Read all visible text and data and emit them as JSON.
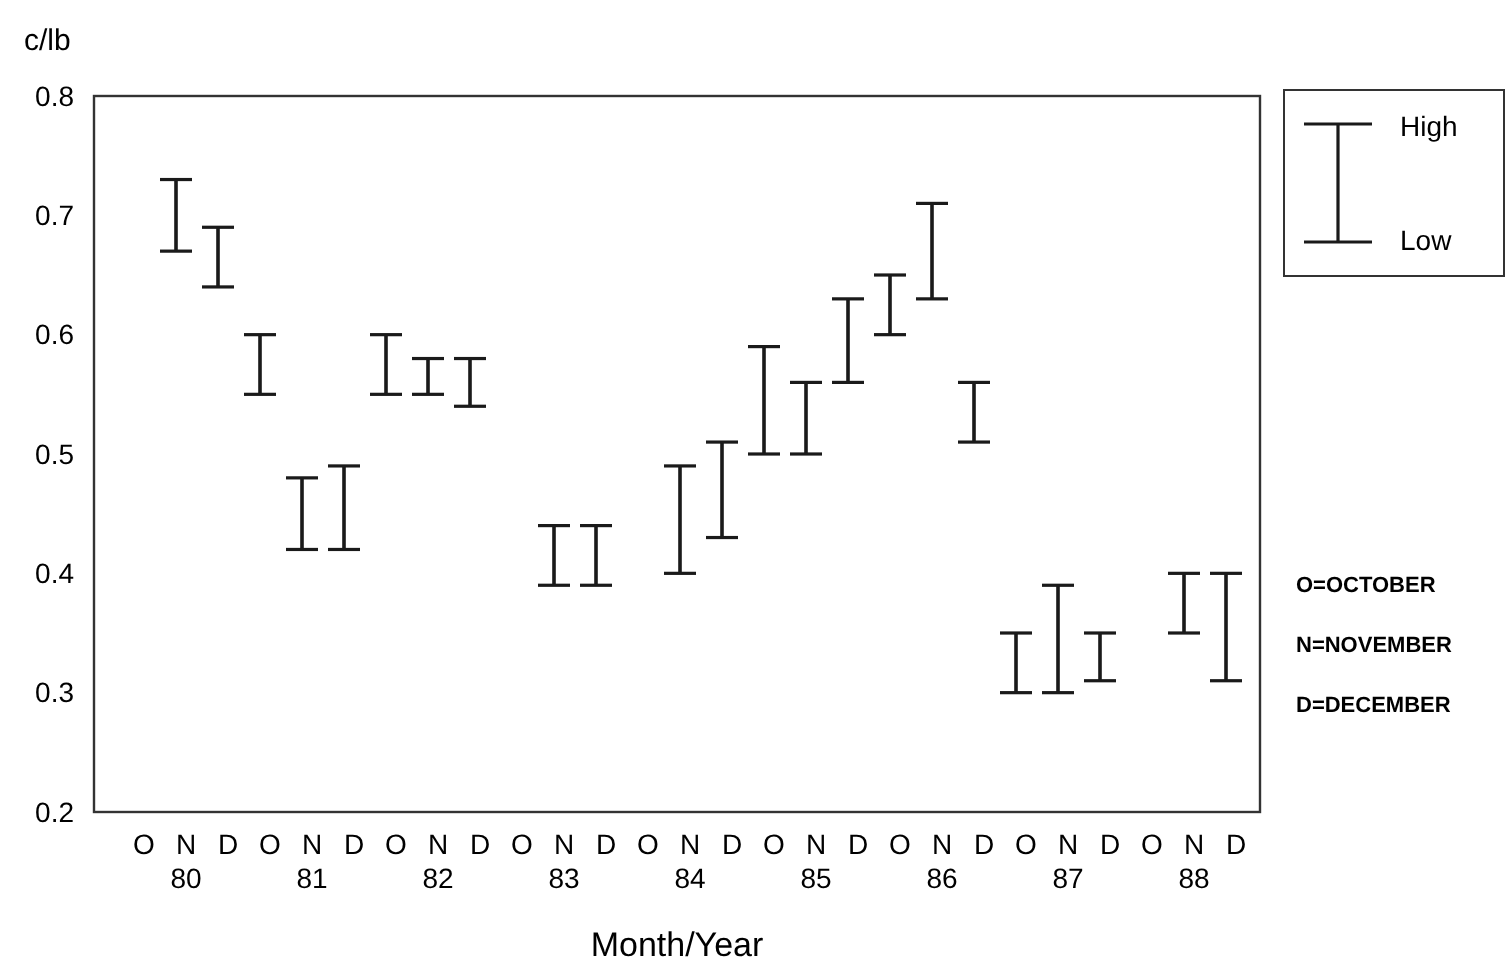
{
  "chart_data": {
    "type": "bar",
    "xlabel": "Month/Year",
    "ylabel": "c/lb",
    "categories": [
      "O",
      "N\n80",
      "D",
      "O",
      "N\n81",
      "D",
      "O",
      "N\n82",
      "D",
      "O",
      "N\n83",
      "D",
      "O",
      "N\n84",
      "D",
      "O",
      "N\n85",
      "D",
      "O",
      "N\n86",
      "D",
      "O",
      "N\n87",
      "D",
      "O",
      "N\n88",
      "D"
    ],
    "base": [
      null,
      0.67,
      0.64,
      0.55,
      0.42,
      0.42,
      0.55,
      0.55,
      0.54,
      null,
      0.39,
      0.39,
      null,
      0.4,
      0.43,
      0.5,
      0.5,
      0.56,
      0.6,
      0.63,
      0.51,
      0.3,
      0.3,
      0.31,
      null,
      0.35,
      0.31
    ],
    "values": [
      null,
      0.06,
      0.05,
      0.05,
      0.06,
      0.07,
      0.05,
      0.03,
      0.04,
      null,
      0.05,
      0.05,
      null,
      0.09,
      0.08,
      0.09,
      0.06,
      0.07,
      0.05,
      0.08,
      0.05,
      0.05,
      0.09,
      0.04,
      null,
      0.05,
      0.09
    ],
    "color": "#1a1a1a",
    "ylim": [
      0.2,
      0.8
    ],
    "yticks": [
      0.2,
      0.3,
      0.4,
      0.5,
      0.6,
      0.7,
      0.8
    ],
    "grid": false,
    "annotations": [
      "High",
      "Low",
      "O=OCTOBER",
      "N=NOVEMBER",
      "D=DECEMBER"
    ]
  }
}
